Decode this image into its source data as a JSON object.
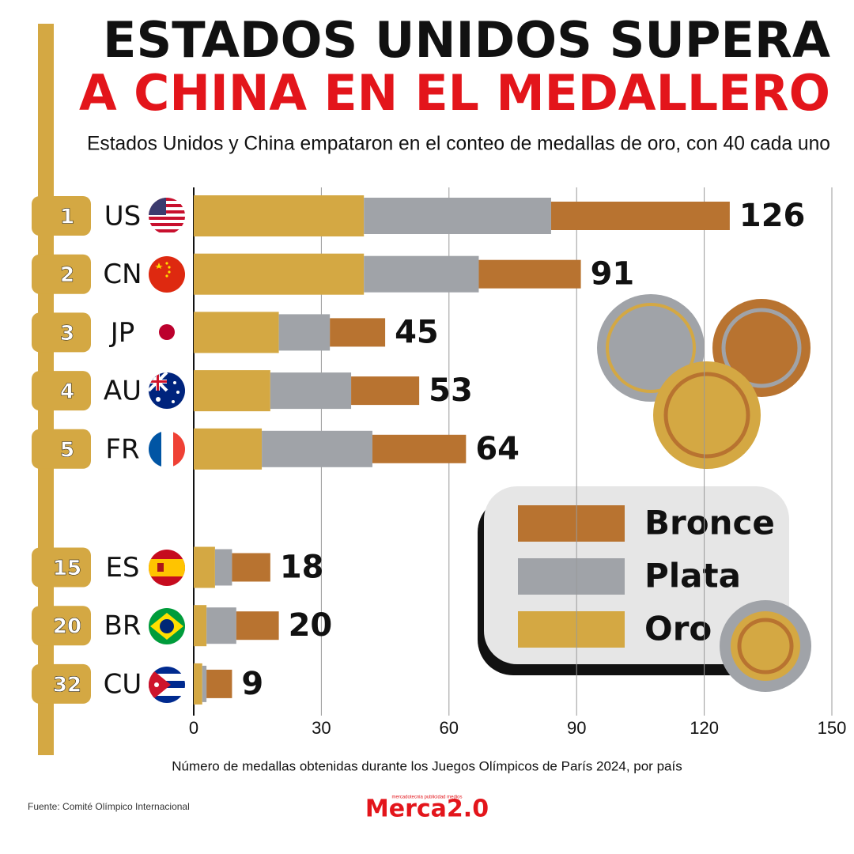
{
  "chart_data": {
    "type": "stacked-hbar",
    "title": [
      "ESTADOS UNIDOS SUPERA",
      "A CHINA EN EL MEDALLERO"
    ],
    "subtitle": "Estados Unidos y China empataron en el conteo de medallas de oro, con 40 cada uno",
    "x_label": "Número de medallas obtenidas durante los Juegos Olímpicos de París 2024, por país",
    "source": "Fuente: Comité Olímpico Internacional",
    "logo": "Merca2.0",
    "logo_tagline": "mercadotecnia publicidad medios",
    "ranks": [
      1,
      2,
      3,
      4,
      5,
      15,
      20,
      32
    ],
    "categories": [
      "US",
      "CN",
      "JP",
      "AU",
      "FR",
      "ES",
      "BR",
      "CU"
    ],
    "series": [
      {
        "name": "Oro",
        "color": "#d4a843",
        "values": [
          40,
          40,
          20,
          18,
          16,
          5,
          3,
          2
        ]
      },
      {
        "name": "Plata",
        "color": "#a0a3a8",
        "values": [
          44,
          27,
          12,
          19,
          26,
          4,
          7,
          1
        ]
      },
      {
        "name": "Bronce",
        "color": "#b87330",
        "values": [
          42,
          24,
          13,
          16,
          22,
          9,
          10,
          6
        ]
      }
    ],
    "totals": [
      126,
      91,
      45,
      53,
      64,
      18,
      20,
      9
    ],
    "xlim": [
      0,
      150
    ],
    "xticks": [
      0,
      30,
      60,
      90,
      120,
      150
    ],
    "grid": true
  }
}
